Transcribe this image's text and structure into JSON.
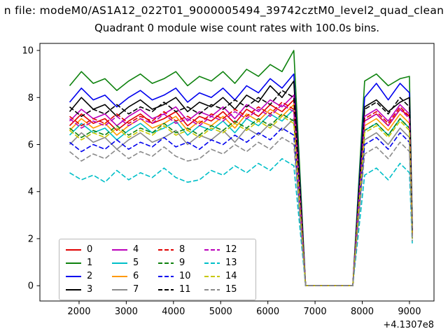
{
  "figure": {
    "file_annotation": "n file: modeM0/AS1A12_022T01_9000005494_39742cztM0_level2_quad_clean",
    "title": "Quadrant 0 module wise count rates with 100.0s bins.",
    "background": "#ffffff"
  },
  "axes": {
    "x_offset_text": "+4.1307e8",
    "frame_color": "#000000",
    "tick_font_px": 13
  },
  "chart_data": {
    "type": "line",
    "title": "Quadrant 0 module wise count rates with 100.0s bins.",
    "xlabel": "",
    "ylabel": "",
    "grid": false,
    "legend_position": "lower left",
    "legend_ncol": 4,
    "x_offset": "+4.1307e8",
    "xlim": [
      1170,
      9520
    ],
    "ylim": [
      -0.65,
      10.3
    ],
    "xticks": [
      2000,
      3000,
      4000,
      5000,
      6000,
      7000,
      8000,
      9000
    ],
    "yticks": [
      0,
      2,
      4,
      6,
      8,
      10
    ],
    "x": [
      1800,
      2050,
      2300,
      2550,
      2800,
      3050,
      3300,
      3550,
      3800,
      4050,
      4300,
      4550,
      4800,
      5050,
      5300,
      5550,
      5800,
      6050,
      6300,
      6550,
      6800,
      7050,
      7300,
      7550,
      7800,
      8050,
      8300,
      8550,
      8800,
      9000,
      9060
    ],
    "series": [
      {
        "name": "0",
        "color": "#e00000",
        "style": "solid",
        "values": [
          6.8,
          7.3,
          6.9,
          7.1,
          6.6,
          7.0,
          7.3,
          6.9,
          7.1,
          7.4,
          6.8,
          7.2,
          7.0,
          7.4,
          6.9,
          7.5,
          7.2,
          7.7,
          7.4,
          7.9,
          0,
          0,
          0,
          0,
          0,
          7.0,
          7.3,
          6.8,
          7.5,
          7.2,
          2.2
        ]
      },
      {
        "name": "1",
        "color": "#0e820e",
        "style": "solid",
        "values": [
          8.5,
          9.1,
          8.6,
          8.8,
          8.3,
          8.7,
          9.0,
          8.6,
          8.8,
          9.1,
          8.5,
          8.9,
          8.7,
          9.1,
          8.6,
          9.2,
          8.9,
          9.4,
          9.1,
          10.0,
          0,
          0,
          0,
          0,
          0,
          8.7,
          9.0,
          8.5,
          8.8,
          8.9,
          2.6
        ]
      },
      {
        "name": "2",
        "color": "#0000ee",
        "style": "solid",
        "values": [
          7.8,
          8.4,
          7.9,
          8.1,
          7.6,
          8.0,
          8.3,
          7.9,
          8.1,
          8.4,
          7.8,
          8.2,
          8.0,
          8.4,
          7.9,
          8.5,
          8.2,
          8.8,
          8.4,
          9.0,
          0,
          0,
          0,
          0,
          0,
          8.0,
          8.6,
          7.9,
          8.6,
          8.2,
          2.4
        ]
      },
      {
        "name": "3",
        "color": "#000000",
        "style": "solid",
        "values": [
          7.4,
          8.0,
          7.5,
          7.7,
          7.2,
          7.6,
          7.9,
          7.5,
          7.7,
          8.0,
          7.4,
          7.8,
          7.6,
          8.0,
          7.5,
          8.1,
          7.8,
          8.5,
          8.0,
          8.7,
          0,
          0,
          0,
          0,
          0,
          7.6,
          7.9,
          7.4,
          7.8,
          8.0,
          2.3
        ]
      },
      {
        "name": "4",
        "color": "#bb00bb",
        "style": "solid",
        "values": [
          7.0,
          7.5,
          7.1,
          7.3,
          6.8,
          7.2,
          7.5,
          7.1,
          7.3,
          7.6,
          7.0,
          7.4,
          7.2,
          7.6,
          7.1,
          7.7,
          7.4,
          7.9,
          7.6,
          8.1,
          0,
          0,
          0,
          0,
          0,
          7.2,
          7.5,
          7.0,
          7.7,
          7.3,
          2.2
        ]
      },
      {
        "name": "5",
        "color": "#00bfc8",
        "style": "solid",
        "values": [
          6.4,
          6.9,
          6.5,
          6.7,
          6.2,
          6.6,
          6.9,
          6.5,
          6.7,
          7.0,
          6.4,
          6.8,
          6.6,
          7.0,
          6.5,
          7.1,
          6.8,
          7.3,
          7.0,
          7.5,
          0,
          0,
          0,
          0,
          0,
          6.6,
          6.9,
          6.4,
          7.1,
          6.7,
          2.1
        ]
      },
      {
        "name": "6",
        "color": "#ff9900",
        "style": "solid",
        "values": [
          6.6,
          7.1,
          6.7,
          6.9,
          6.4,
          6.8,
          7.1,
          6.7,
          6.9,
          7.2,
          6.6,
          7.0,
          6.8,
          7.2,
          6.7,
          7.3,
          7.0,
          7.5,
          7.2,
          7.7,
          0,
          0,
          0,
          0,
          0,
          6.8,
          7.1,
          6.6,
          7.3,
          6.9,
          2.1
        ]
      },
      {
        "name": "7",
        "color": "#8a8a8a",
        "style": "solid",
        "values": [
          6.0,
          6.5,
          6.1,
          6.3,
          5.8,
          6.2,
          6.5,
          6.1,
          6.3,
          6.6,
          6.0,
          6.4,
          6.2,
          6.6,
          6.1,
          6.7,
          6.4,
          6.9,
          6.6,
          7.1,
          0,
          0,
          0,
          0,
          0,
          6.2,
          6.5,
          6.0,
          6.7,
          6.3,
          2.0
        ]
      },
      {
        "name": "8",
        "color": "#e00000",
        "style": "dashed",
        "values": [
          7.2,
          6.8,
          7.1,
          6.9,
          7.3,
          6.9,
          7.2,
          7.0,
          7.4,
          7.0,
          7.2,
          6.9,
          7.3,
          7.1,
          7.5,
          7.2,
          7.6,
          7.3,
          7.8,
          7.5,
          0,
          0,
          0,
          0,
          0,
          7.1,
          7.4,
          6.9,
          7.6,
          7.2,
          2.2
        ]
      },
      {
        "name": "9",
        "color": "#0e820e",
        "style": "dashed",
        "values": [
          6.7,
          6.3,
          6.6,
          6.4,
          6.8,
          6.4,
          6.7,
          6.5,
          6.9,
          6.5,
          6.7,
          6.4,
          6.8,
          6.6,
          7.0,
          6.7,
          7.1,
          6.8,
          7.3,
          7.0,
          0,
          0,
          0,
          0,
          0,
          6.6,
          6.9,
          6.4,
          7.1,
          6.7,
          2.0
        ]
      },
      {
        "name": "10",
        "color": "#0000ee",
        "style": "dashed",
        "values": [
          6.1,
          5.7,
          6.0,
          5.8,
          6.2,
          5.8,
          6.1,
          5.9,
          6.3,
          5.9,
          6.1,
          5.8,
          6.2,
          6.0,
          6.4,
          6.1,
          6.5,
          6.2,
          6.7,
          6.4,
          0,
          0,
          0,
          0,
          0,
          6.0,
          6.3,
          5.8,
          6.5,
          6.1,
          2.0
        ]
      },
      {
        "name": "11",
        "color": "#000000",
        "style": "dashed",
        "values": [
          7.6,
          7.2,
          7.5,
          7.3,
          7.7,
          7.3,
          7.6,
          7.4,
          7.8,
          7.4,
          7.6,
          7.3,
          7.7,
          7.5,
          7.9,
          7.6,
          8.0,
          7.7,
          8.3,
          8.0,
          0,
          0,
          0,
          0,
          0,
          7.5,
          7.8,
          7.3,
          8.0,
          7.6,
          2.3
        ]
      },
      {
        "name": "12",
        "color": "#bb00bb",
        "style": "dashed",
        "values": [
          7.1,
          6.7,
          7.0,
          6.8,
          7.2,
          6.8,
          7.1,
          6.9,
          7.3,
          6.9,
          7.1,
          6.8,
          7.2,
          7.0,
          7.4,
          7.1,
          7.5,
          7.2,
          7.7,
          7.4,
          0,
          0,
          0,
          0,
          0,
          7.0,
          7.3,
          6.8,
          7.5,
          7.1,
          2.1
        ]
      },
      {
        "name": "13",
        "color": "#00bfc8",
        "style": "dashed",
        "values": [
          4.8,
          4.5,
          4.7,
          4.4,
          4.9,
          4.5,
          4.8,
          4.6,
          5.0,
          4.6,
          4.4,
          4.5,
          4.9,
          4.7,
          5.1,
          4.8,
          5.2,
          4.9,
          5.4,
          5.1,
          0,
          0,
          0,
          0,
          0,
          4.7,
          5.0,
          4.5,
          5.2,
          4.8,
          1.8
        ]
      },
      {
        "name": "14",
        "color": "#c8c800",
        "style": "dashed",
        "values": [
          6.6,
          6.2,
          6.5,
          6.3,
          6.7,
          6.3,
          6.6,
          6.4,
          6.8,
          6.4,
          6.6,
          6.3,
          6.7,
          6.5,
          6.9,
          6.6,
          7.0,
          6.7,
          7.2,
          6.9,
          0,
          0,
          0,
          0,
          0,
          6.5,
          6.8,
          6.3,
          7.0,
          6.6,
          2.0
        ]
      },
      {
        "name": "15",
        "color": "#8a8a8a",
        "style": "dashed",
        "values": [
          5.7,
          5.3,
          5.6,
          5.4,
          5.8,
          5.4,
          5.7,
          5.5,
          5.9,
          5.5,
          5.3,
          5.4,
          5.8,
          5.6,
          6.0,
          5.7,
          6.1,
          5.8,
          6.3,
          6.0,
          0,
          0,
          0,
          0,
          0,
          5.6,
          5.9,
          5.4,
          6.1,
          5.7,
          1.9
        ]
      }
    ]
  }
}
